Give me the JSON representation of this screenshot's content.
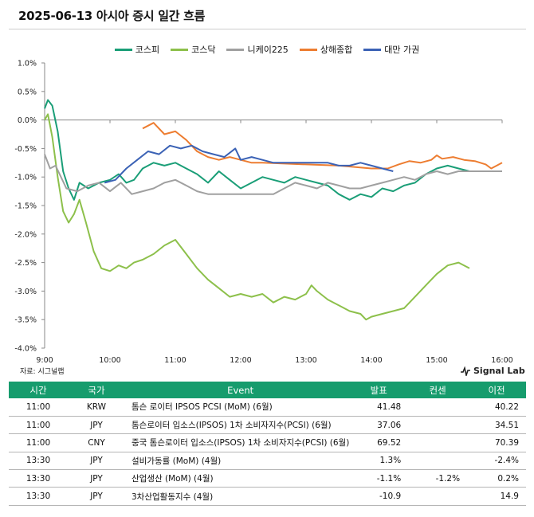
{
  "title": "2025-06-13 아시아 증시 일간 흐름",
  "source": "자료: 시그널랩",
  "brand": "Signal Lab",
  "chart_data": {
    "type": "line",
    "ylim": [
      -4.0,
      1.0
    ],
    "yticks": [
      "1.0%",
      "0.5%",
      "0.0%",
      "-0.5%",
      "-1.0%",
      "-1.5%",
      "-2.0%",
      "-2.5%",
      "-3.0%",
      "-3.5%",
      "-4.0%"
    ],
    "xticks": [
      "9:00",
      "10:00",
      "11:00",
      "12:00",
      "13:00",
      "14:00",
      "15:00",
      "16:00"
    ],
    "xlim": [
      "9:00",
      "16:00"
    ],
    "grid": false,
    "legend_position": "top",
    "series": [
      {
        "name": "코스피",
        "color": "#1a9e77",
        "points": [
          [
            "9:00",
            0.2
          ],
          [
            "9:03",
            0.35
          ],
          [
            "9:07",
            0.25
          ],
          [
            "9:12",
            -0.2
          ],
          [
            "9:17",
            -0.9
          ],
          [
            "9:22",
            -1.2
          ],
          [
            "9:27",
            -1.4
          ],
          [
            "9:32",
            -1.1
          ],
          [
            "9:40",
            -1.2
          ],
          [
            "9:50",
            -1.1
          ],
          [
            "10:00",
            -1.05
          ],
          [
            "10:08",
            -0.95
          ],
          [
            "10:15",
            -1.1
          ],
          [
            "10:22",
            -1.05
          ],
          [
            "10:30",
            -0.85
          ],
          [
            "10:40",
            -0.75
          ],
          [
            "10:50",
            -0.8
          ],
          [
            "11:00",
            -0.75
          ],
          [
            "11:10",
            -0.85
          ],
          [
            "11:20",
            -0.95
          ],
          [
            "11:30",
            -1.1
          ],
          [
            "11:40",
            -0.9
          ],
          [
            "11:50",
            -1.05
          ],
          [
            "12:00",
            -1.2
          ],
          [
            "12:10",
            -1.1
          ],
          [
            "12:20",
            -1.0
          ],
          [
            "12:30",
            -1.05
          ],
          [
            "12:40",
            -1.1
          ],
          [
            "12:50",
            -1.0
          ],
          [
            "13:00",
            -1.05
          ],
          [
            "13:10",
            -1.1
          ],
          [
            "13:20",
            -1.15
          ],
          [
            "13:30",
            -1.3
          ],
          [
            "13:40",
            -1.4
          ],
          [
            "13:50",
            -1.3
          ],
          [
            "14:00",
            -1.35
          ],
          [
            "14:10",
            -1.2
          ],
          [
            "14:20",
            -1.25
          ],
          [
            "14:30",
            -1.15
          ],
          [
            "14:40",
            -1.1
          ],
          [
            "14:50",
            -0.95
          ],
          [
            "15:00",
            -0.85
          ],
          [
            "15:10",
            -0.8
          ],
          [
            "15:20",
            -0.85
          ],
          [
            "15:30",
            -0.9
          ]
        ]
      },
      {
        "name": "코스닥",
        "color": "#8dc04b",
        "points": [
          [
            "9:00",
            0.0
          ],
          [
            "9:03",
            0.1
          ],
          [
            "9:07",
            -0.3
          ],
          [
            "9:12",
            -1.0
          ],
          [
            "9:17",
            -1.6
          ],
          [
            "9:22",
            -1.8
          ],
          [
            "9:27",
            -1.65
          ],
          [
            "9:32",
            -1.4
          ],
          [
            "9:38",
            -1.8
          ],
          [
            "9:45",
            -2.3
          ],
          [
            "9:52",
            -2.6
          ],
          [
            "10:00",
            -2.65
          ],
          [
            "10:08",
            -2.55
          ],
          [
            "10:15",
            -2.6
          ],
          [
            "10:22",
            -2.5
          ],
          [
            "10:30",
            -2.45
          ],
          [
            "10:40",
            -2.35
          ],
          [
            "10:50",
            -2.2
          ],
          [
            "11:00",
            -2.1
          ],
          [
            "11:10",
            -2.35
          ],
          [
            "11:20",
            -2.6
          ],
          [
            "11:30",
            -2.8
          ],
          [
            "11:40",
            -2.95
          ],
          [
            "11:50",
            -3.1
          ],
          [
            "12:00",
            -3.05
          ],
          [
            "12:10",
            -3.1
          ],
          [
            "12:20",
            -3.05
          ],
          [
            "12:30",
            -3.2
          ],
          [
            "12:40",
            -3.1
          ],
          [
            "12:50",
            -3.15
          ],
          [
            "13:00",
            -3.05
          ],
          [
            "13:05",
            -2.9
          ],
          [
            "13:10",
            -3.0
          ],
          [
            "13:20",
            -3.15
          ],
          [
            "13:30",
            -3.25
          ],
          [
            "13:40",
            -3.35
          ],
          [
            "13:50",
            -3.4
          ],
          [
            "13:55",
            -3.5
          ],
          [
            "14:00",
            -3.45
          ],
          [
            "14:10",
            -3.4
          ],
          [
            "14:20",
            -3.35
          ],
          [
            "14:30",
            -3.3
          ],
          [
            "14:40",
            -3.1
          ],
          [
            "14:50",
            -2.9
          ],
          [
            "15:00",
            -2.7
          ],
          [
            "15:10",
            -2.55
          ],
          [
            "15:20",
            -2.5
          ],
          [
            "15:30",
            -2.6
          ]
        ]
      },
      {
        "name": "니케이225",
        "color": "#a0a0a0",
        "points": [
          [
            "9:00",
            -0.6
          ],
          [
            "9:05",
            -0.85
          ],
          [
            "9:10",
            -0.8
          ],
          [
            "9:15",
            -1.0
          ],
          [
            "9:20",
            -1.2
          ],
          [
            "9:30",
            -1.25
          ],
          [
            "9:40",
            -1.15
          ],
          [
            "9:50",
            -1.1
          ],
          [
            "10:00",
            -1.25
          ],
          [
            "10:10",
            -1.1
          ],
          [
            "10:20",
            -1.3
          ],
          [
            "10:30",
            -1.25
          ],
          [
            "10:40",
            -1.2
          ],
          [
            "10:50",
            -1.1
          ],
          [
            "11:00",
            -1.05
          ],
          [
            "11:10",
            -1.15
          ],
          [
            "11:20",
            -1.25
          ],
          [
            "11:30",
            -1.3
          ],
          [
            "12:30",
            -1.3
          ],
          [
            "12:40",
            -1.2
          ],
          [
            "12:50",
            -1.1
          ],
          [
            "13:00",
            -1.15
          ],
          [
            "13:10",
            -1.2
          ],
          [
            "13:20",
            -1.1
          ],
          [
            "13:30",
            -1.15
          ],
          [
            "13:40",
            -1.2
          ],
          [
            "13:50",
            -1.2
          ],
          [
            "14:00",
            -1.15
          ],
          [
            "14:10",
            -1.1
          ],
          [
            "14:20",
            -1.05
          ],
          [
            "14:30",
            -1.0
          ],
          [
            "14:40",
            -1.05
          ],
          [
            "14:50",
            -0.95
          ],
          [
            "15:00",
            -0.9
          ],
          [
            "15:10",
            -0.95
          ],
          [
            "15:20",
            -0.9
          ],
          [
            "15:30",
            -0.9
          ],
          [
            "16:00",
            -0.9
          ]
        ]
      },
      {
        "name": "상해종합",
        "color": "#ed7d31",
        "points": [
          [
            "10:30",
            -0.15
          ],
          [
            "10:40",
            -0.05
          ],
          [
            "10:50",
            -0.25
          ],
          [
            "11:00",
            -0.2
          ],
          [
            "11:10",
            -0.35
          ],
          [
            "11:20",
            -0.55
          ],
          [
            "11:30",
            -0.65
          ],
          [
            "11:40",
            -0.7
          ],
          [
            "11:50",
            -0.65
          ],
          [
            "12:00",
            -0.7
          ],
          [
            "12:10",
            -0.75
          ],
          [
            "12:20",
            -0.75
          ],
          [
            "13:00",
            -0.78
          ],
          [
            "13:30",
            -0.8
          ],
          [
            "14:00",
            -0.85
          ],
          [
            "14:15",
            -0.85
          ],
          [
            "14:25",
            -0.78
          ],
          [
            "14:35",
            -0.72
          ],
          [
            "14:45",
            -0.75
          ],
          [
            "14:55",
            -0.7
          ],
          [
            "15:00",
            -0.62
          ],
          [
            "15:05",
            -0.68
          ],
          [
            "15:15",
            -0.65
          ],
          [
            "15:25",
            -0.7
          ],
          [
            "15:35",
            -0.72
          ],
          [
            "15:45",
            -0.78
          ],
          [
            "15:50",
            -0.85
          ],
          [
            "15:55",
            -0.8
          ],
          [
            "16:00",
            -0.75
          ]
        ]
      },
      {
        "name": "대만 가권",
        "color": "#3b62b5",
        "points": [
          [
            "9:55",
            -1.1
          ],
          [
            "10:05",
            -1.05
          ],
          [
            "10:15",
            -0.85
          ],
          [
            "10:25",
            -0.7
          ],
          [
            "10:35",
            -0.55
          ],
          [
            "10:45",
            -0.6
          ],
          [
            "10:55",
            -0.45
          ],
          [
            "11:05",
            -0.5
          ],
          [
            "11:15",
            -0.45
          ],
          [
            "11:25",
            -0.55
          ],
          [
            "11:35",
            -0.6
          ],
          [
            "11:45",
            -0.65
          ],
          [
            "11:55",
            -0.5
          ],
          [
            "12:00",
            -0.7
          ],
          [
            "12:10",
            -0.65
          ],
          [
            "12:20",
            -0.7
          ],
          [
            "12:30",
            -0.75
          ],
          [
            "13:00",
            -0.75
          ],
          [
            "13:20",
            -0.75
          ],
          [
            "13:30",
            -0.8
          ],
          [
            "13:40",
            -0.8
          ],
          [
            "13:50",
            -0.75
          ],
          [
            "14:00",
            -0.8
          ],
          [
            "14:10",
            -0.85
          ],
          [
            "14:20",
            -0.9
          ]
        ]
      }
    ]
  },
  "table": {
    "headers": {
      "time": "시간",
      "country": "국가",
      "event": "Event",
      "actual": "발표",
      "consensus": "컨센",
      "previous": "이전"
    },
    "rows": [
      {
        "time": "11:00",
        "country": "KRW",
        "event": "톰슨 로이터 IPSOS PCSI (MoM) (6월)",
        "actual": "41.48",
        "consensus": "",
        "previous": "40.22"
      },
      {
        "time": "11:00",
        "country": "JPY",
        "event": "톰슨로이터 입소스(IPSOS) 1차 소비자지수(PCSI) (6월)",
        "actual": "37.06",
        "consensus": "",
        "previous": "34.51"
      },
      {
        "time": "11:00",
        "country": "CNY",
        "event": "중국 톰슨로이터 입소스(IPSOS) 1차 소비자지수(PCSI) (6월)",
        "actual": "69.52",
        "consensus": "",
        "previous": "70.39"
      },
      {
        "time": "13:30",
        "country": "JPY",
        "event": "설비가동률 (MoM) (4월)",
        "actual": "1.3%",
        "consensus": "",
        "previous": "-2.4%"
      },
      {
        "time": "13:30",
        "country": "JPY",
        "event": "산업생산 (MoM) (4월)",
        "actual": "-1.1%",
        "consensus": "-1.2%",
        "previous": "0.2%"
      },
      {
        "time": "13:30",
        "country": "JPY",
        "event": "3차산업활동지수 (4월)",
        "actual": "-10.9",
        "consensus": "",
        "previous": "14.9"
      }
    ]
  }
}
